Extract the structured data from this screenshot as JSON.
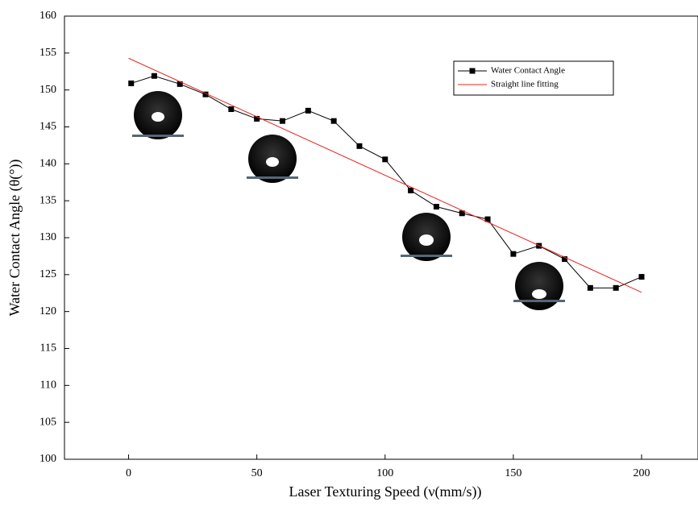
{
  "chart_data": {
    "type": "line",
    "x_label": "Laser Texturing Speed (ν(mm/s))",
    "y_label": "Water Contact  Angle (θ(°))",
    "xlim": [
      -25,
      222
    ],
    "ylim": [
      100,
      160
    ],
    "xticks": [
      0,
      50,
      100,
      150,
      200
    ],
    "yticks": [
      100,
      105,
      110,
      115,
      120,
      125,
      130,
      135,
      140,
      145,
      150,
      155,
      160
    ],
    "grid": false,
    "series": [
      {
        "name": "Water Contact  Angle",
        "color": "#000000",
        "marker": "square",
        "x": [
          1,
          10,
          20,
          30,
          40,
          50,
          60,
          70,
          80,
          90,
          100,
          110,
          120,
          130,
          140,
          150,
          160,
          170,
          180,
          190,
          200
        ],
        "values": [
          150.9,
          151.9,
          150.8,
          149.4,
          147.4,
          146.1,
          145.8,
          147.2,
          145.8,
          142.4,
          140.6,
          136.4,
          134.2,
          133.3,
          132.5,
          127.8,
          128.9,
          127.1,
          123.2,
          123.2,
          124.7
        ]
      },
      {
        "name": "Straight line fitting",
        "color": "#e8251f",
        "marker": "none",
        "x": [
          0,
          200
        ],
        "values": [
          154.3,
          122.6
        ]
      }
    ]
  }
}
